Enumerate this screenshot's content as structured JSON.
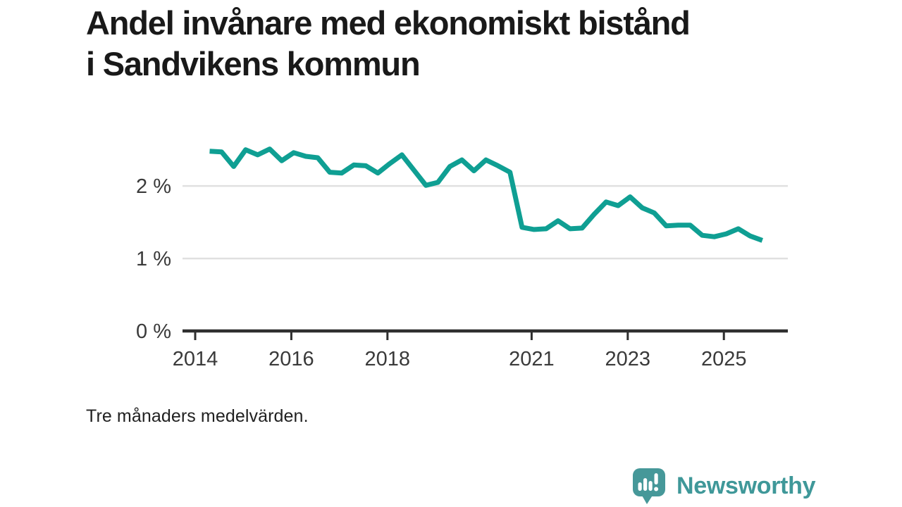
{
  "header": {
    "title": "Andel invånare med ekonomiskt bistånd i Sandvikens kommun"
  },
  "footnote": "Tre månaders medelvärden.",
  "branding": {
    "name": "Newsworthy",
    "logo_icon": "speech-bubble-bar-chart-icon",
    "mark_color": "#469899",
    "text_color": "#3f9899"
  },
  "chart_data": {
    "type": "line",
    "title": "Andel invånare med ekonomiskt bistånd i Sandvikens kommun",
    "subtitle_note": "Tre månaders medelvärden.",
    "unit": "%",
    "x_unit": "year (decimal)",
    "x": [
      2014.3,
      2014.55,
      2014.8,
      2015.05,
      2015.3,
      2015.55,
      2015.8,
      2016.05,
      2016.3,
      2016.55,
      2016.8,
      2017.05,
      2017.3,
      2017.55,
      2017.8,
      2018.05,
      2018.3,
      2018.55,
      2018.8,
      2019.05,
      2019.3,
      2019.55,
      2019.8,
      2020.05,
      2020.3,
      2020.55,
      2020.8,
      2021.05,
      2021.3,
      2021.55,
      2021.8,
      2022.05,
      2022.3,
      2022.55,
      2022.8,
      2023.05,
      2023.3,
      2023.55,
      2023.8,
      2024.05,
      2024.3,
      2024.55,
      2024.8,
      2025.05,
      2025.3,
      2025.55,
      2025.8
    ],
    "values": [
      2.48,
      2.47,
      2.27,
      2.5,
      2.43,
      2.51,
      2.35,
      2.46,
      2.41,
      2.39,
      2.19,
      2.18,
      2.29,
      2.28,
      2.18,
      2.31,
      2.43,
      2.22,
      2.01,
      2.05,
      2.27,
      2.36,
      2.21,
      2.36,
      2.28,
      2.19,
      1.43,
      1.4,
      1.41,
      1.52,
      1.41,
      1.42,
      1.61,
      1.78,
      1.73,
      1.85,
      1.7,
      1.63,
      1.45,
      1.46,
      1.46,
      1.32,
      1.3,
      1.34,
      1.41,
      1.31,
      1.25
    ],
    "xlim": [
      2013.736,
      2026.331
    ],
    "ylim": [
      0,
      2.75
    ],
    "xticks": [
      2014,
      2016,
      2018,
      2021,
      2023,
      2025
    ],
    "xtick_labels": [
      "2014",
      "2016",
      "2018",
      "2021",
      "2023",
      "2025"
    ],
    "yticks": [
      0,
      1,
      2
    ],
    "ytick_labels": [
      "0 %",
      "1 %",
      "2 %"
    ],
    "grid": true,
    "legend": "none",
    "line_color": "#0f9f93",
    "grid_color": "#e0e0e0",
    "axis_color": "#2f2f2f",
    "text_color": "#3a3a3a"
  }
}
